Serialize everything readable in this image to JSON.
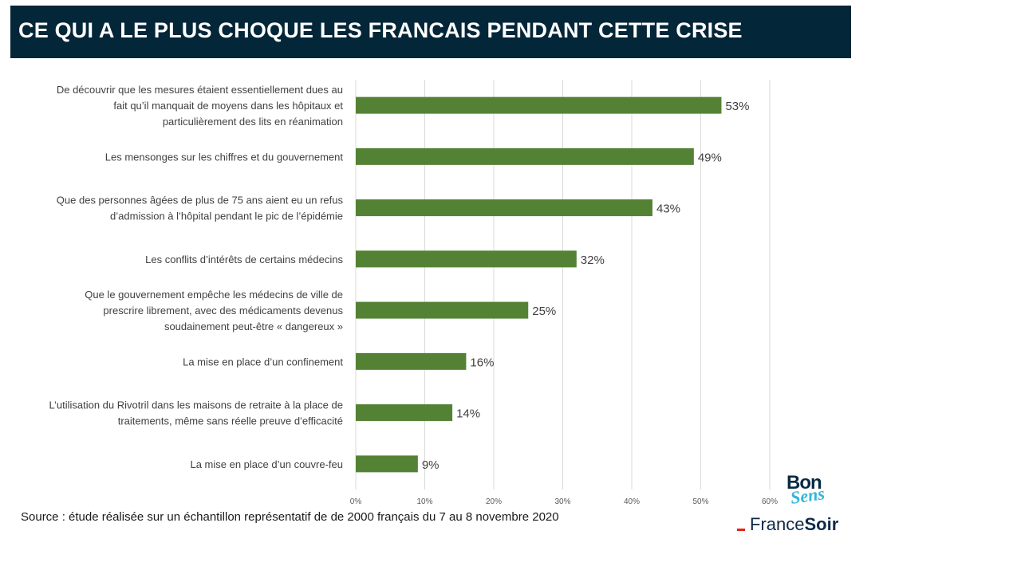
{
  "header": {
    "title": "CE QUI A LE PLUS CHOQUE LES FRANCAIS PENDANT CETTE CRISE"
  },
  "source": "Source : étude réalisée sur un échantillon représentatif de de 2000 français du 7 au 8 novembre 2020",
  "logos": {
    "bonsens": {
      "line1": "Bon",
      "line2": "Sens"
    },
    "francesoir": {
      "part1": "France",
      "part2": "Soir"
    }
  },
  "colors": {
    "title_bg": "#032638",
    "bar": "#548235",
    "grid": "#d9d9d9",
    "label": "#404040"
  },
  "chart_data": {
    "type": "bar",
    "orientation": "horizontal",
    "categories": [
      [
        "De découvrir  que les mesures étaient essentiellement dues au",
        "fait qu’il manquait de moyens dans les hôpitaux et",
        "particulièrement des lits en réanimation"
      ],
      [
        "Les mensonges sur les chiffres et du gouvernement"
      ],
      [
        "Que des personnes âgées de plus de 75 ans aient eu un refus",
        "d’admission à l’hôpital pendant  le pic de l’épidémie"
      ],
      [
        "Les conflits d’intérêts de certains médecins"
      ],
      [
        "Que le gouvernement empêche les médecins de ville de",
        "prescrire librement, avec des médicaments devenus",
        "soudainement peut-être « dangereux »"
      ],
      [
        "La mise en place d’un confinement"
      ],
      [
        "L’utilisation du Rivotril dans les maisons de retraite à la place de",
        "traitements, même sans réelle preuve d’efficacité"
      ],
      [
        "La mise en place d’un couvre-feu"
      ]
    ],
    "values": [
      53,
      49,
      43,
      32,
      25,
      16,
      14,
      9
    ],
    "data_labels": [
      "53%",
      "49%",
      "43%",
      "32%",
      "25%",
      "16%",
      "14%",
      "9%"
    ],
    "x_ticks": [
      "0%",
      "10%",
      "20%",
      "30%",
      "40%",
      "50%",
      "60%"
    ],
    "xlim": [
      0,
      60
    ],
    "grid": true,
    "legend": "none"
  }
}
